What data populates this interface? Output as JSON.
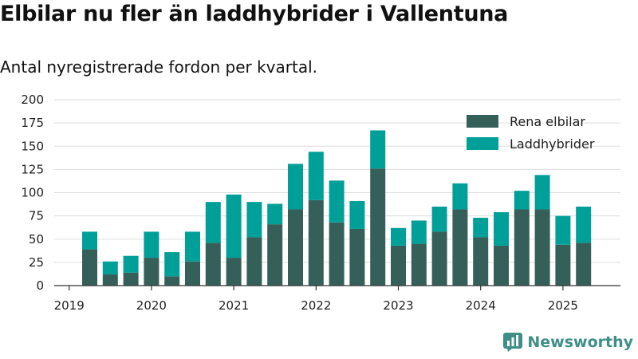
{
  "title": "Elbilar nu fler än laddhybrider i Vallentuna",
  "subtitle": "Antal nyregistrerade fordon per kvartal.",
  "brand": "Newsworthy",
  "colors": {
    "elbilar": "#35605a",
    "laddhybrider": "#00a099",
    "grid": "#dddddd",
    "axis": "#333333",
    "brand": "#3f8f88"
  },
  "chart_data": {
    "type": "bar",
    "stacked": true,
    "title": "Elbilar nu fler än laddhybrider i Vallentuna",
    "subtitle": "Antal nyregistrerade fordon per kvartal.",
    "ylim": [
      0,
      200
    ],
    "yticks": [
      0,
      25,
      50,
      75,
      100,
      125,
      150,
      175,
      200
    ],
    "xtick_labels": [
      "2019",
      "2020",
      "2021",
      "2022",
      "2023",
      "2024",
      "2025"
    ],
    "grid": true,
    "legend_position": "top-right",
    "categories": [
      "2019 Q2",
      "2019 Q3",
      "2019 Q4",
      "2020 Q1",
      "2020 Q2",
      "2020 Q3",
      "2020 Q4",
      "2021 Q1",
      "2021 Q2",
      "2021 Q3",
      "2021 Q4",
      "2022 Q1",
      "2022 Q2",
      "2022 Q3",
      "2022 Q4",
      "2023 Q1",
      "2023 Q2",
      "2023 Q3",
      "2023 Q4",
      "2024 Q1",
      "2024 Q2",
      "2024 Q3",
      "2024 Q4",
      "2025 Q1",
      "2025 Q2"
    ],
    "series": [
      {
        "name": "Rena elbilar",
        "color": "#35605a",
        "values": [
          39,
          12,
          14,
          30,
          10,
          26,
          46,
          30,
          52,
          66,
          82,
          92,
          68,
          61,
          126,
          43,
          45,
          58,
          82,
          52,
          43,
          82,
          82,
          44,
          46
        ]
      },
      {
        "name": "Laddhybrider",
        "color": "#00a099",
        "values": [
          19,
          14,
          18,
          28,
          26,
          32,
          44,
          68,
          38,
          22,
          49,
          52,
          45,
          30,
          41,
          19,
          25,
          27,
          28,
          21,
          36,
          20,
          37,
          31,
          39
        ]
      }
    ]
  }
}
